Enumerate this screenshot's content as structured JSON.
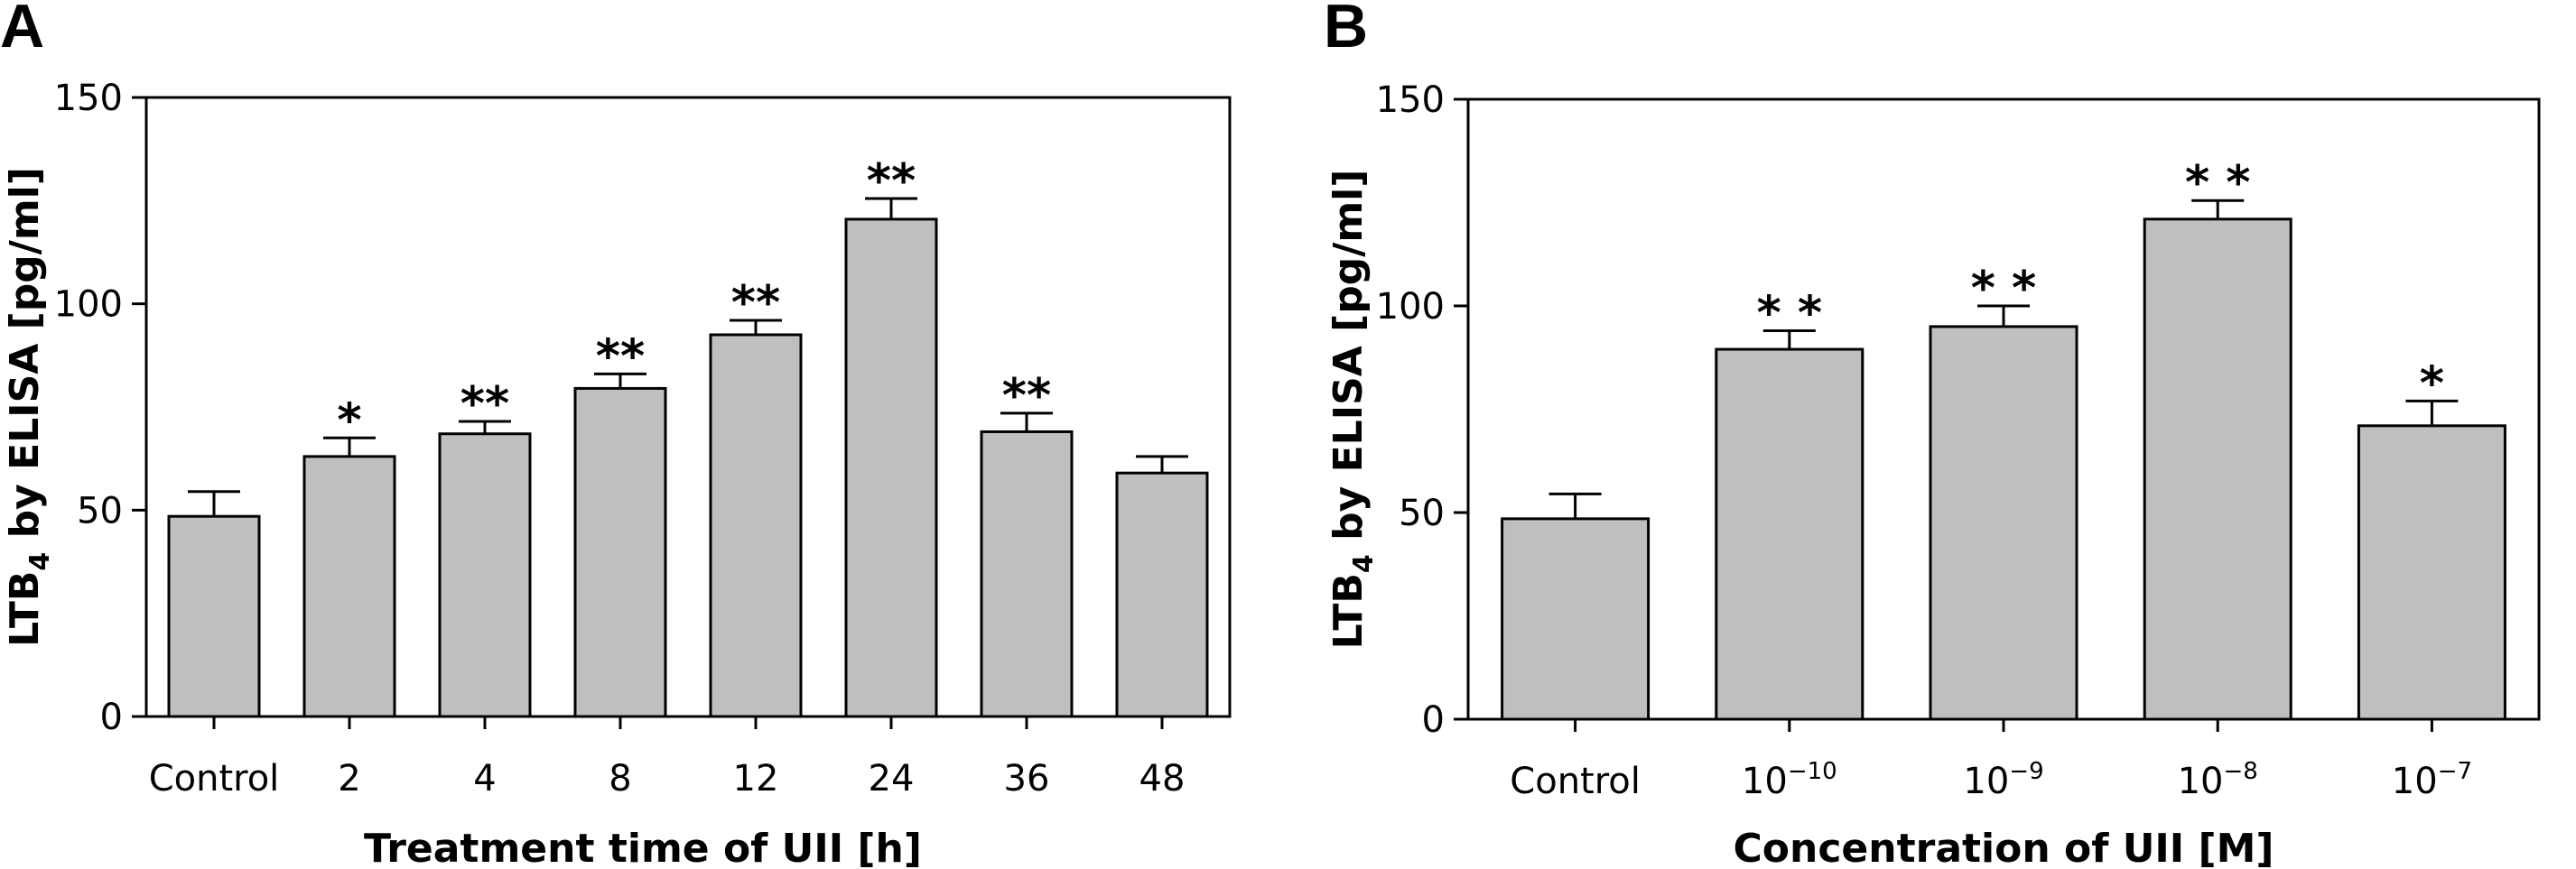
{
  "chart_data": [
    {
      "panel": "A",
      "type": "bar",
      "title": "",
      "xlabel": "Treatment time of UII [h]",
      "ylabel": "LTB4 by ELISA [pg/ml]",
      "ylabel_main": "LTB",
      "ylabel_sub": "4",
      "ylabel_rest": " by ELISA [pg/ml]",
      "ylim": [
        0,
        150
      ],
      "yticks": [
        "0",
        "50",
        "100",
        "150"
      ],
      "categories": [
        "Control",
        "2",
        "4",
        "8",
        "12",
        "24",
        "36",
        "48"
      ],
      "values": [
        48.5,
        63,
        68.5,
        79.5,
        92.5,
        120.5,
        69,
        59
      ],
      "errors": [
        6,
        4.5,
        3,
        3.5,
        3.5,
        5,
        4.5,
        4
      ],
      "significance": [
        "",
        "*",
        "**",
        "**",
        "**",
        "**",
        "**",
        ""
      ]
    },
    {
      "panel": "B",
      "type": "bar",
      "title": "",
      "xlabel": "Concentration of UII [M]",
      "ylabel": "LTB4 by ELISA [pg/ml]",
      "ylabel_main": "LTB",
      "ylabel_sub": "4",
      "ylabel_rest": " by ELISA [pg/ml]",
      "ylim": [
        0,
        150
      ],
      "yticks": [
        "0",
        "50",
        "100",
        "150"
      ],
      "categories": [
        "Control",
        "10−10",
        "10−9",
        "10−8",
        "10−7"
      ],
      "category_labels": [
        {
          "base": "Control",
          "sup": ""
        },
        {
          "base": "10",
          "sup": "−10"
        },
        {
          "base": "10",
          "sup": "−9"
        },
        {
          "base": "10",
          "sup": "−8"
        },
        {
          "base": "10",
          "sup": "−7"
        }
      ],
      "values": [
        48.5,
        89.5,
        95,
        121,
        71
      ],
      "errors": [
        6,
        4.5,
        5,
        4.5,
        6
      ],
      "significance": [
        "",
        "* *",
        "* *",
        "* *",
        "*"
      ]
    }
  ]
}
